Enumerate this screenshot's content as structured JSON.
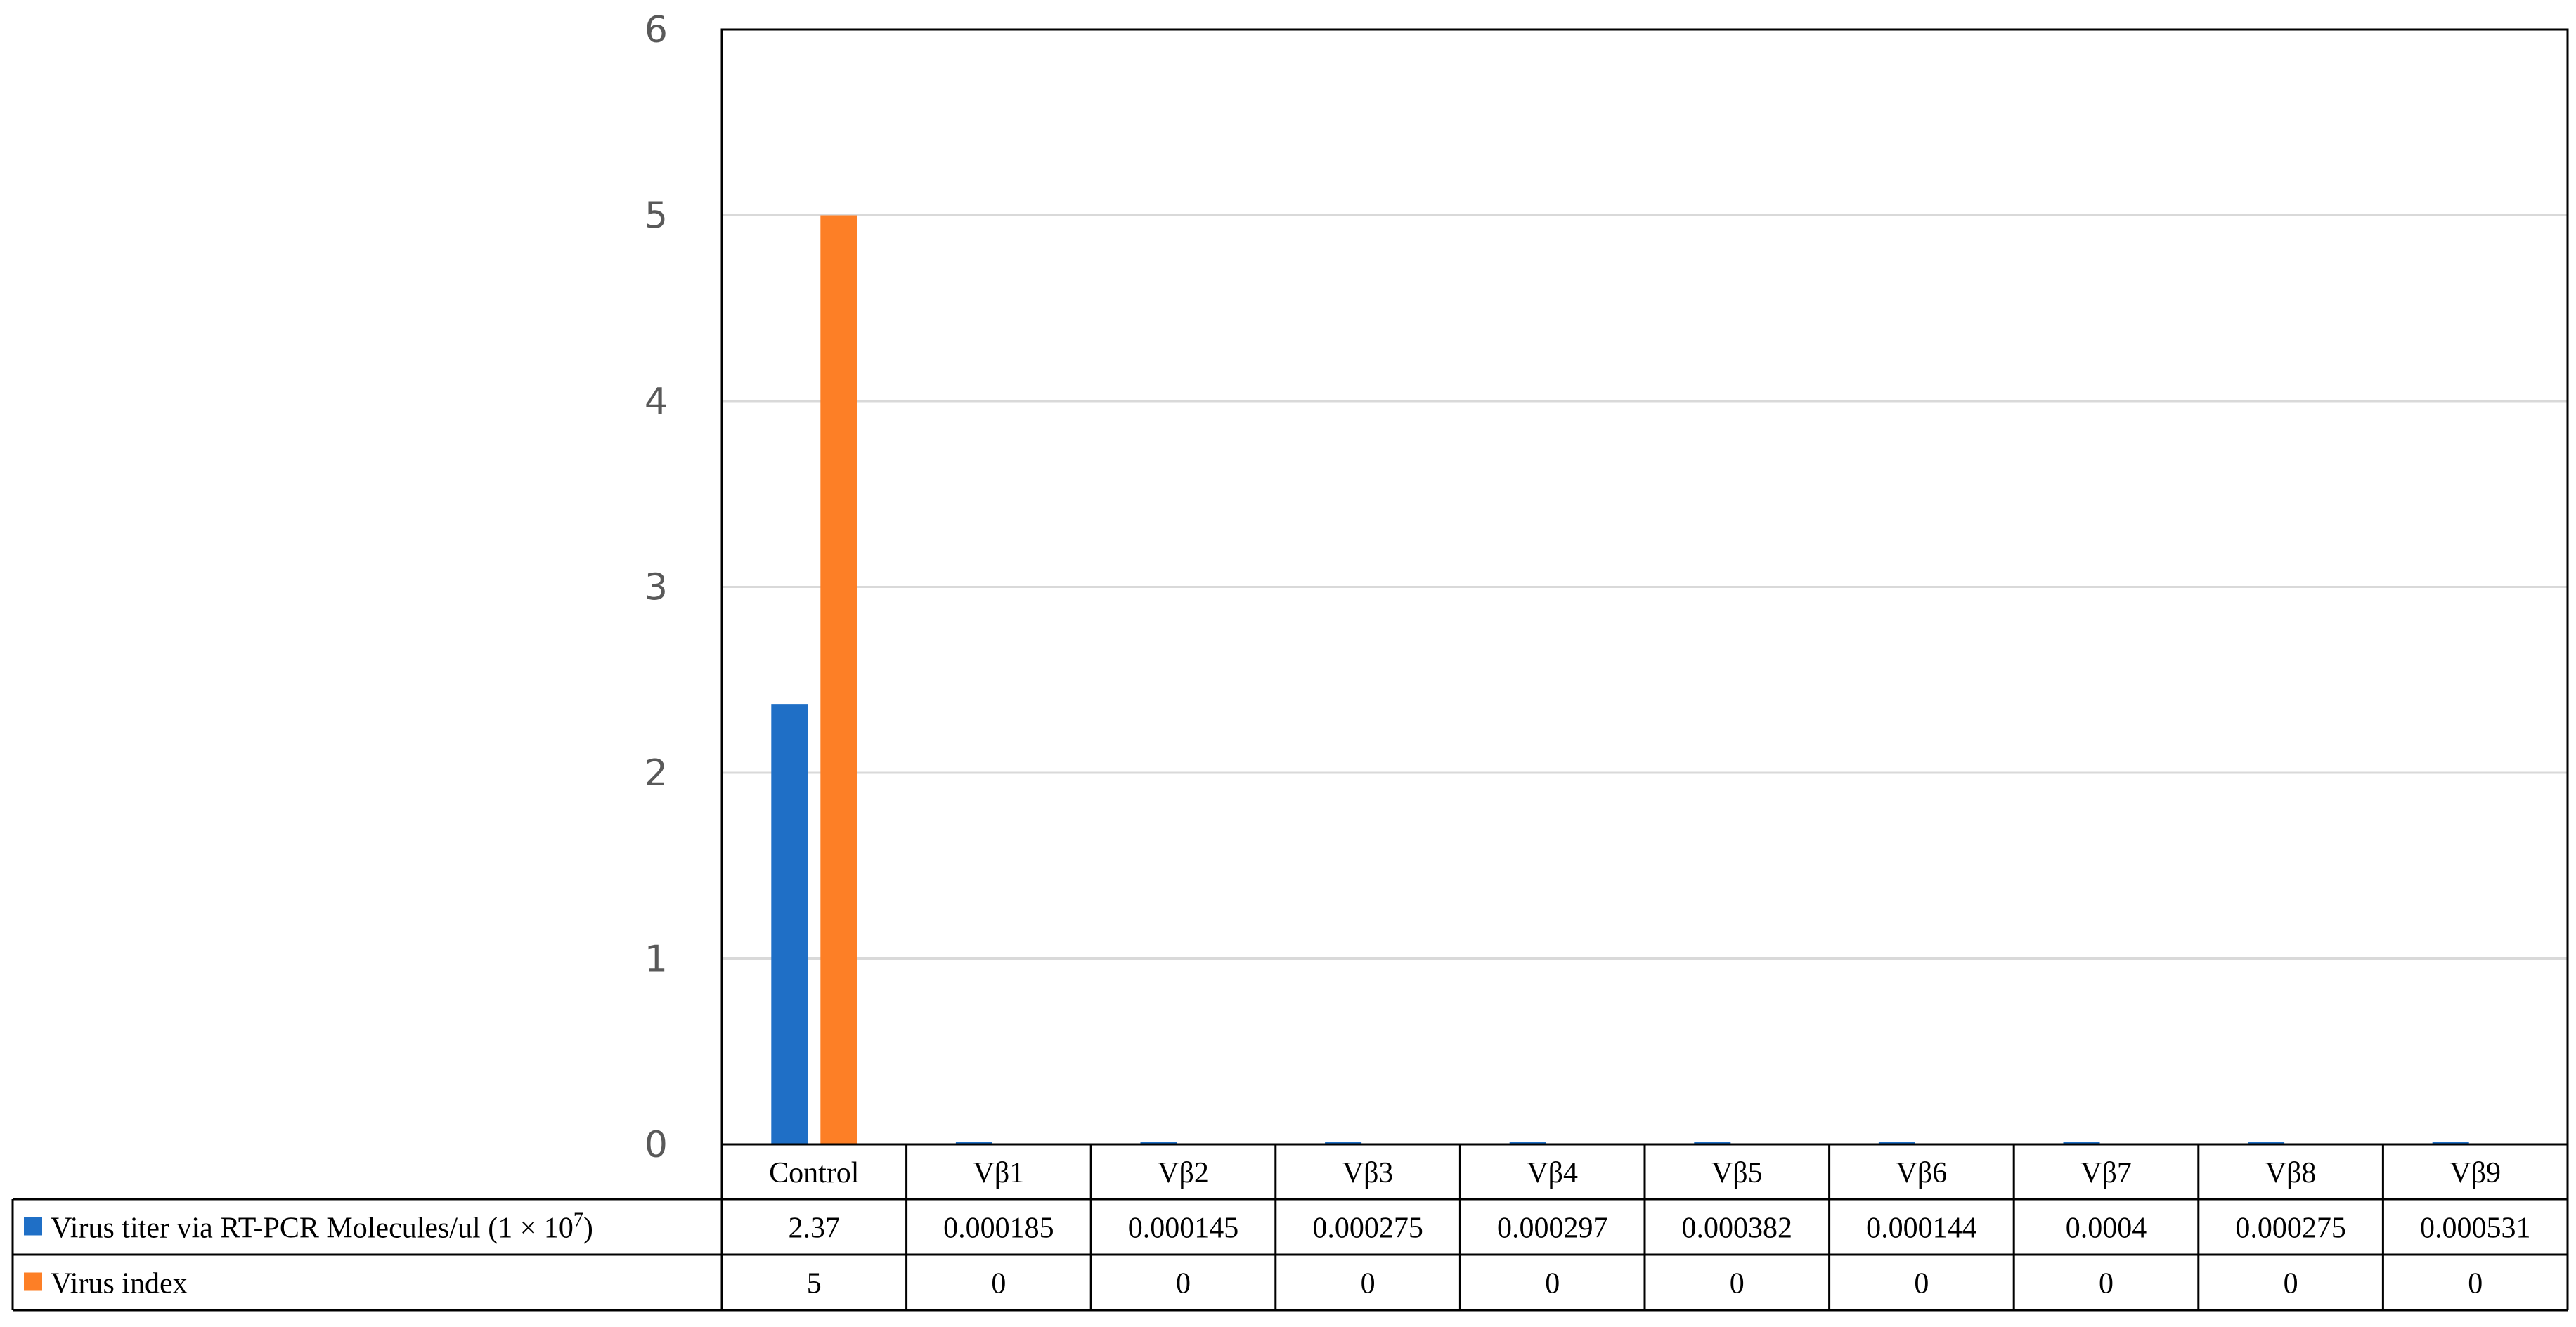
{
  "chart_data": {
    "type": "bar",
    "title": "",
    "xlabel": "",
    "ylabel": "",
    "ylim": [
      0,
      6
    ],
    "yticks": [
      0,
      1,
      2,
      3,
      4,
      5,
      6
    ],
    "grid": true,
    "legend": "data-table-left",
    "categories": [
      "Control",
      "Vβ1",
      "Vβ2",
      "Vβ3",
      "Vβ4",
      "Vβ5",
      "Vβ6",
      "Vβ7",
      "Vβ8",
      "Vβ9"
    ],
    "series": [
      {
        "name": "Virus titer via RT-PCR Molecules/ul (1 × 10",
        "name_sup": "7",
        "name_suffix": ")",
        "color": "#1f6fc6",
        "values": [
          2.37,
          0.000185,
          0.000145,
          0.000275,
          0.000297,
          0.000382,
          0.000144,
          0.0004,
          0.000275,
          0.000531
        ],
        "labels": [
          "2.37",
          "0.000185",
          "0.000145",
          "0.000275",
          "0.000297",
          "0.000382",
          "0.000144",
          "0.0004",
          "0.000275",
          "0.000531"
        ]
      },
      {
        "name": "Virus index",
        "color": "#fd7f26",
        "values": [
          5,
          0,
          0,
          0,
          0,
          0,
          0,
          0,
          0,
          0
        ],
        "labels": [
          "5",
          "0",
          "0",
          "0",
          "0",
          "0",
          "0",
          "0",
          "0",
          "0"
        ]
      }
    ]
  }
}
